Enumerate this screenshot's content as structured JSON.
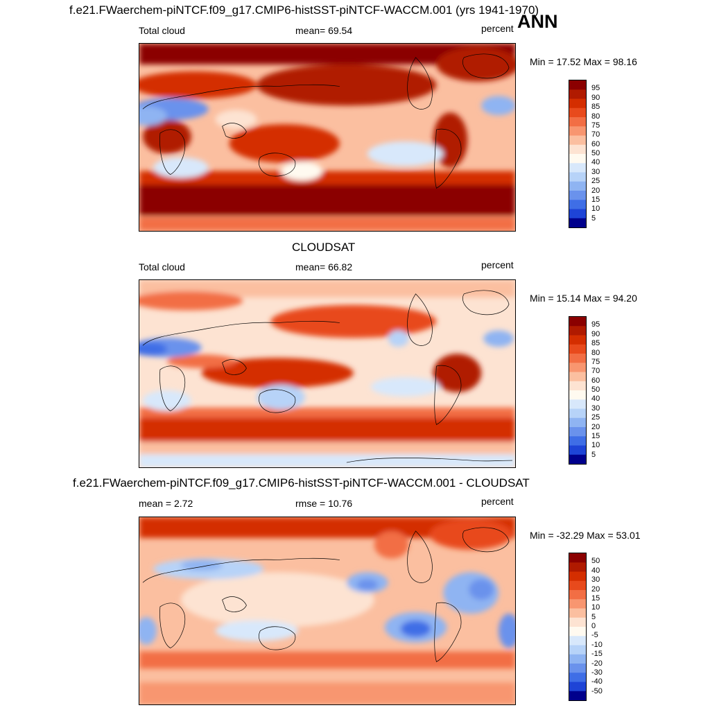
{
  "top_title": "f.e21.FWaerchem-piNTCF.f09_g17.CMIP6-histSST-piNTCF-WACCM.001 (yrs 1941-1970)",
  "season": "ANN",
  "panels": [
    {
      "title": "",
      "left_label": "Total cloud",
      "center_label": "mean=  69.54",
      "right_label": "percent",
      "minmax": "Min =  17.52 Max =  98.16",
      "kind": "abs"
    },
    {
      "title": "CLOUDSAT",
      "left_label": "Total cloud",
      "center_label": "mean=  66.82",
      "right_label": "percent",
      "minmax": "Min =  15.14 Max =  94.20",
      "kind": "abs"
    },
    {
      "title": "f.e21.FWaerchem-piNTCF.f09_g17.CMIP6-histSST-piNTCF-WACCM.001 - CLOUDSAT",
      "left_label": "mean =   2.72",
      "center_label": "rmse =  10.76",
      "right_label": "percent",
      "minmax": "Min = -32.29 Max =  53.01",
      "kind": "diff"
    }
  ],
  "colorbar_abs": {
    "labels": [
      "95",
      "90",
      "85",
      "80",
      "75",
      "70",
      "60",
      "50",
      "40",
      "30",
      "25",
      "20",
      "15",
      "10",
      "5"
    ],
    "colors": [
      "#8b0000",
      "#b01a00",
      "#d42e00",
      "#e84a1c",
      "#f26e44",
      "#f89670",
      "#fbbfa0",
      "#fde3d2",
      "#fffaf0",
      "#d8e8fb",
      "#b7d3f8",
      "#8fb4f2",
      "#6a92ec",
      "#3f6ee6",
      "#1e44d6",
      "#00008c"
    ]
  },
  "colorbar_diff": {
    "labels": [
      "50",
      "40",
      "30",
      "20",
      "15",
      "10",
      "5",
      "0",
      "-5",
      "-10",
      "-15",
      "-20",
      "-30",
      "-40",
      "-50"
    ],
    "colors": [
      "#8b0000",
      "#b01a00",
      "#d42e00",
      "#e84a1c",
      "#f26e44",
      "#f89670",
      "#fbbfa0",
      "#fde3d2",
      "#fffaf0",
      "#d8e8fb",
      "#b7d3f8",
      "#8fb4f2",
      "#6a92ec",
      "#3f6ee6",
      "#1e44d6",
      "#00008c"
    ]
  }
}
